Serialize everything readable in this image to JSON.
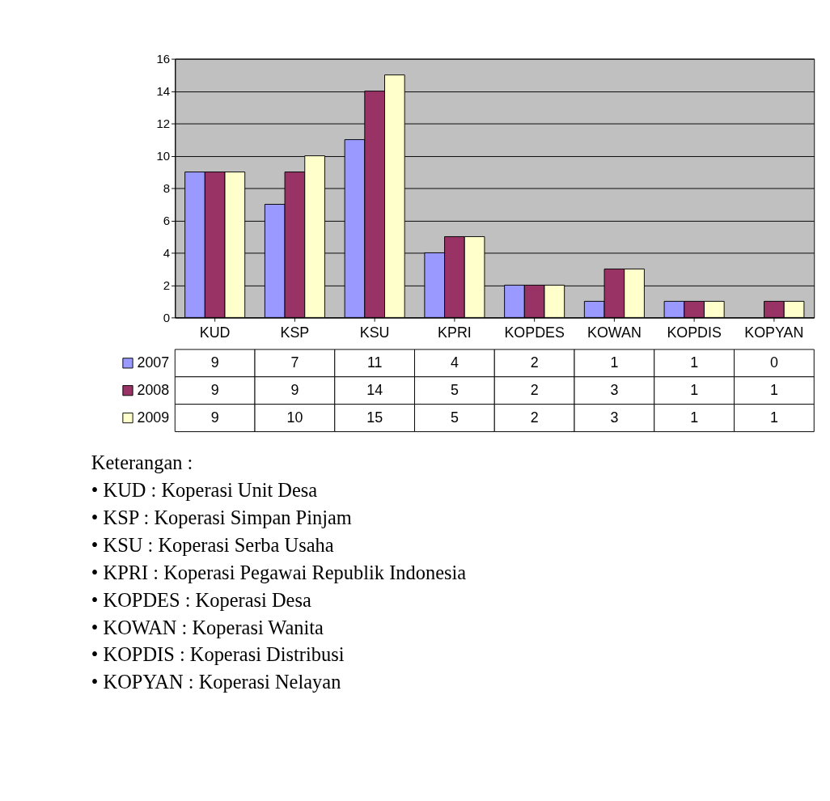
{
  "chart_data": {
    "type": "bar",
    "categories": [
      "KUD",
      "KSP",
      "KSU",
      "KPRI",
      "KOPDES",
      "KOWAN",
      "KOPDIS",
      "KOPYAN"
    ],
    "series": [
      {
        "name": "2007",
        "color": "#9999ff",
        "values": [
          9,
          7,
          11,
          4,
          2,
          1,
          1,
          0
        ]
      },
      {
        "name": "2008",
        "color": "#993366",
        "values": [
          9,
          9,
          14,
          5,
          2,
          3,
          1,
          1
        ]
      },
      {
        "name": "2009",
        "color": "#ffffcc",
        "values": [
          9,
          10,
          15,
          5,
          2,
          3,
          1,
          1
        ]
      }
    ],
    "ylim": [
      0,
      16
    ],
    "yticks": [
      0,
      2,
      4,
      6,
      8,
      10,
      12,
      14,
      16
    ],
    "grid": "y",
    "legend": "bottom left",
    "data_labels": true,
    "annotations": [
      "Keterangan  :",
      "•   KUD           :   Koperasi Unit Desa",
      "•   KSP            :   Koperasi Simpan Pinjam",
      "•   KSU            :   Koperasi Serba Usaha",
      "•   KPRI           :   Koperasi Pegawai Republik Indonesia",
      "•   KOPDES     :   Koperasi Desa",
      "•   KOWAN      :   Koperasi Wanita",
      "•   KOPDIS      :   Koperasi Distribusi",
      "•   KOPYAN     :   Koperasi Nelayan"
    ]
  }
}
